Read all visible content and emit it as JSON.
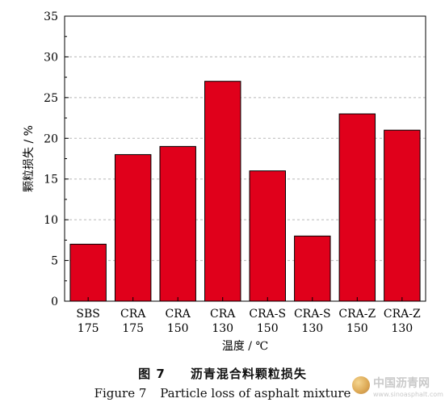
{
  "chart_data": {
    "type": "bar",
    "categories": [
      [
        "SBS",
        "175"
      ],
      [
        "CRA",
        "175"
      ],
      [
        "CRA",
        "150"
      ],
      [
        "CRA",
        "130"
      ],
      [
        "CRA-S",
        "150"
      ],
      [
        "CRA-S",
        "130"
      ],
      [
        "CRA-Z",
        "150"
      ],
      [
        "CRA-Z",
        "130"
      ]
    ],
    "values": [
      7,
      18,
      19,
      27,
      16,
      8,
      23,
      21
    ],
    "xlabel": "温度 / ℃",
    "ylabel": "颗粒损失 / %",
    "ylim": [
      0,
      35
    ],
    "yticks": [
      0,
      5,
      10,
      15,
      20,
      25,
      30,
      35
    ],
    "grid": "dashed horizontal",
    "bar_color": "#e0001b",
    "bar_edge_color": "#000000"
  },
  "caption": {
    "cn_number": "图 7",
    "cn_title": "沥青混合料颗粒损失",
    "en_number": "Figure 7",
    "en_title": "Particle loss of asphalt mixture"
  },
  "watermark": {
    "title": "中国沥青网",
    "url": "www.sinoasphalt.com",
    "icon": "globe-icon"
  }
}
